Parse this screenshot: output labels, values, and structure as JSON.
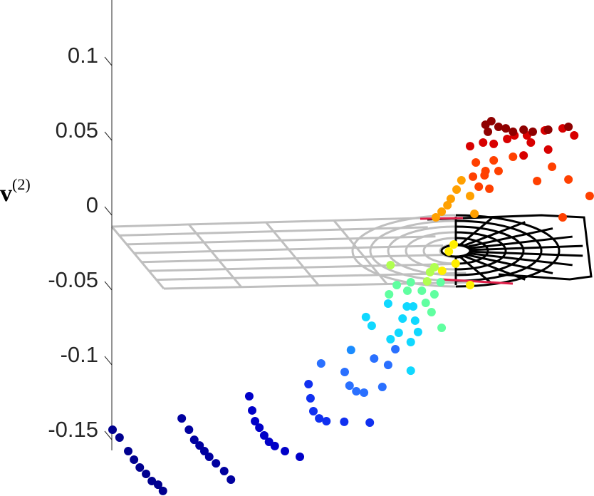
{
  "chart_data": {
    "type": "scatter",
    "ylabel": "v",
    "ylabel_superscript": "(2)",
    "ylim": [
      -0.19,
      0.14
    ],
    "yticks": [
      0.1,
      0.05,
      0,
      -0.05,
      -0.1,
      -0.15
    ],
    "xlim": [
      0,
      100
    ],
    "x": [
      0.15,
      1.6,
      3.4,
      4.6,
      5.8,
      7.1,
      8.3,
      9.6,
      10.6,
      14.5,
      16.0,
      17.1,
      18.2,
      19.2,
      20.2,
      21.6,
      23.3,
      24.7,
      28.5,
      29.1,
      29.7,
      30.6,
      31.6,
      32.6,
      33.8,
      35.9,
      39.0,
      40.8,
      41.2,
      41.8,
      43.0,
      44.5,
      48.2,
      53.5,
      43.4,
      48.3,
      49.3,
      50.7,
      52.3,
      56.1,
      54.4,
      57.3,
      58.8,
      49.6,
      52.7,
      53.9,
      57.8,
      59.5,
      62.0,
      62.0,
      62.9,
      61.2,
      63.5,
      57.3,
      60.3,
      62.5,
      57.5,
      59.1,
      61.3,
      62.0,
      64.3,
      65.1,
      66.3,
      68.4,
      66.9,
      68.2,
      65.4,
      66.0,
      66.9,
      57.8,
      69.9,
      70.9,
      68.5,
      71.3,
      74.3,
      67.2,
      68.4,
      69.6,
      70.3,
      71.5,
      72.5,
      74.3,
      75.2,
      74.9,
      76.1,
      77.3,
      78.3,
      75.5,
      77.5,
      79.2,
      80.2,
      83.2,
      91.3,
      94.7,
      99.1,
      93.5,
      88.2,
      74.3,
      77.0,
      79.2,
      82.0,
      83.5,
      86.9,
      90.5,
      86.1,
      89.8,
      93.5,
      95.9,
      85.4,
      77.5,
      78.7,
      80.2,
      81.7,
      83.2,
      85.4,
      87.3,
      90.5,
      94.7,
      78.0
    ],
    "values": [
      -0.1443,
      -0.1495,
      -0.1586,
      -0.1643,
      -0.1695,
      -0.1738,
      -0.1786,
      -0.181,
      -0.1852,
      -0.1367,
      -0.1443,
      -0.151,
      -0.1548,
      -0.1586,
      -0.1624,
      -0.1667,
      -0.1719,
      -0.1776,
      -0.1219,
      -0.1314,
      -0.1386,
      -0.1429,
      -0.1481,
      -0.1524,
      -0.1552,
      -0.1586,
      -0.1624,
      -0.1138,
      -0.1233,
      -0.1319,
      -0.1367,
      -0.1386,
      -0.139,
      -0.1395,
      -0.1,
      -0.1057,
      -0.1148,
      -0.1186,
      -0.1195,
      -0.1157,
      -0.0967,
      -0.101,
      -0.0905,
      -0.091,
      -0.069,
      -0.0748,
      -0.0838,
      -0.0795,
      -0.1048,
      -0.0857,
      -0.0714,
      -0.0619,
      -0.079,
      -0.06,
      -0.07,
      -0.0619,
      -0.0538,
      -0.0476,
      -0.0514,
      -0.0457,
      -0.0514,
      -0.0595,
      -0.0657,
      -0.0762,
      -0.0538,
      -0.0457,
      -0.0452,
      -0.039,
      -0.0357,
      -0.0343,
      -0.0252,
      -0.0205,
      -0.0381,
      -0.0333,
      -0.0476,
      -0.0024,
      0.0014,
      0.0057,
      0.01,
      0.0162,
      0.0224,
      0.0119,
      0,
      0.0248,
      0.0181,
      0.0257,
      0.0167,
      0.0343,
      0.0286,
      0.0357,
      0.0286,
      0.0381,
      0.0314,
      0.0229,
      0.0119,
      -0.0024,
      0.0219,
      0.0452,
      0.0476,
      0.0467,
      0.05,
      0.0524,
      0.0476,
      0.0429,
      0.0524,
      0.0557,
      0.0571,
      0.0524,
      0.039,
      0.0595,
      0.0619,
      0.0581,
      0.0571,
      0.0548,
      0.0562,
      0.0548,
      0.0562,
      0.0581,
      0.0548
    ],
    "colors": [
      "#00008f",
      "#00008f",
      "#00008f",
      "#00008f",
      "#00008f",
      "#00008f",
      "#00008f",
      "#00008f",
      "#00008f",
      "#00009f",
      "#00009f",
      "#00009f",
      "#00009f",
      "#00009f",
      "#00009f",
      "#00009f",
      "#00009f",
      "#00009f",
      "#0000c8",
      "#0000c8",
      "#0000c8",
      "#0000c8",
      "#0000c8",
      "#0000c8",
      "#0000c8",
      "#0000c8",
      "#0000c8",
      "#1030f0",
      "#1030f0",
      "#1030f0",
      "#1030f0",
      "#1030f0",
      "#1030f0",
      "#1030f0",
      "#2a70ff",
      "#2a70ff",
      "#2a70ff",
      "#2a70ff",
      "#2a70ff",
      "#2a70ff",
      "#2a70ff",
      "#2a70ff",
      "#2a70ff",
      "#1a8cff",
      "#10d8ff",
      "#10d8ff",
      "#10d8ff",
      "#10d8ff",
      "#10d8ff",
      "#10d8ff",
      "#10d8ff",
      "#10d8ff",
      "#10d8ff",
      "#10d8ff",
      "#10d8ff",
      "#10d8ff",
      "#60ffa0",
      "#60ffa0",
      "#60ffa0",
      "#60ffa0",
      "#60ffa0",
      "#60ffa0",
      "#60ffa0",
      "#60ffa0",
      "#60ffa0",
      "#60ffa0",
      "#b0ff50",
      "#b0ff50",
      "#b0ff50",
      "#b0ff50",
      "#ffee00",
      "#ffee00",
      "#ffee00",
      "#ffee00",
      "#ffee00",
      "#ffa000",
      "#ffa000",
      "#ffa000",
      "#ffa000",
      "#ffa000",
      "#ffa000",
      "#ffa000",
      "#ffa000",
      "#ff4000",
      "#ff4000",
      "#ff4000",
      "#ff4000",
      "#ff4000",
      "#ff4000",
      "#ff4000",
      "#ff4000",
      "#ff4000",
      "#ff4000",
      "#ff4000",
      "#ff4000",
      "#ff4000",
      "#ff4000",
      "#d80000",
      "#d80000",
      "#d80000",
      "#d80000",
      "#d80000",
      "#d80000",
      "#d80000",
      "#d80000",
      "#d80000",
      "#d80000",
      "#d80000",
      "#d80000",
      "#8f0000",
      "#8f0000",
      "#8f0000",
      "#8f0000",
      "#8f0000",
      "#8f0000",
      "#8f0000",
      "#8f0000",
      "#8f0000",
      "#8f0000"
    ]
  }
}
